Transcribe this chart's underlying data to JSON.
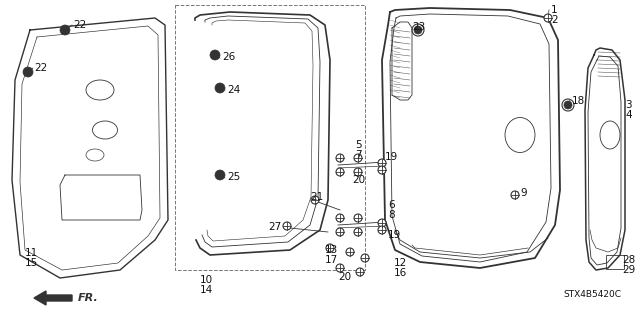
{
  "bg_color": "#ffffff",
  "diagram_id": "STX4B5420C",
  "line_color": "#333333",
  "label_color": "#111111",
  "gray": "#777777",
  "lw_main": 1.0,
  "lw_inner": 0.6,
  "lw_dash": 0.6,
  "font_size": 7.5,
  "small_font": 6.5
}
